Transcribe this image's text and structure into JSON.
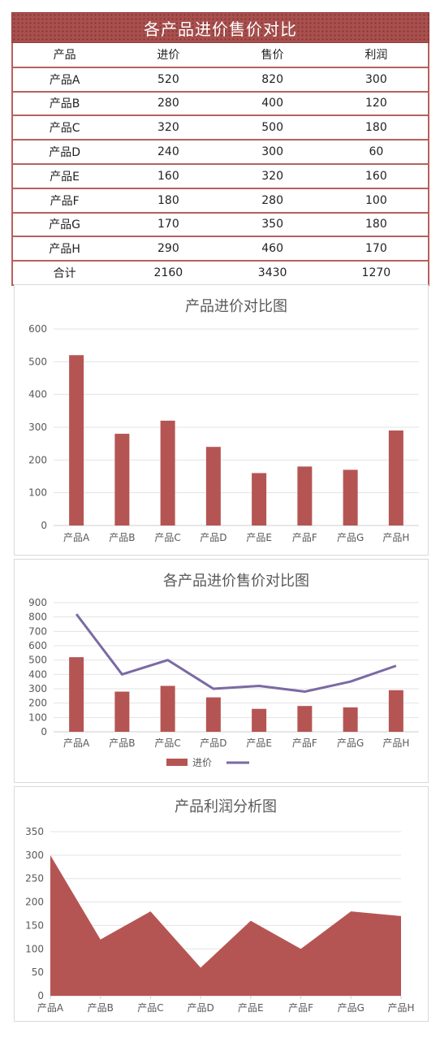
{
  "table": {
    "title": "各产品进价售价对比",
    "headers": [
      "产品",
      "进价",
      "售价",
      "利润"
    ],
    "rows": [
      [
        "产品A",
        "520",
        "820",
        "300"
      ],
      [
        "产品B",
        "280",
        "400",
        "120"
      ],
      [
        "产品C",
        "320",
        "500",
        "180"
      ],
      [
        "产品D",
        "240",
        "300",
        "60"
      ],
      [
        "产品E",
        "160",
        "320",
        "160"
      ],
      [
        "产品F",
        "180",
        "280",
        "100"
      ],
      [
        "产品G",
        "170",
        "350",
        "180"
      ],
      [
        "产品H",
        "290",
        "460",
        "170"
      ],
      [
        "合计",
        "2160",
        "3430",
        "1270"
      ]
    ]
  },
  "chart_data": [
    {
      "type": "bar",
      "title": "产品进价对比图",
      "categories": [
        "产品A",
        "产品B",
        "产品C",
        "产品D",
        "产品E",
        "产品F",
        "产品G",
        "产品H"
      ],
      "series": [
        {
          "values": [
            520,
            280,
            320,
            240,
            160,
            180,
            170,
            290
          ],
          "color": "#b55553"
        }
      ],
      "ylim": [
        0,
        600
      ],
      "yticks": [
        0,
        100,
        200,
        300,
        400,
        500,
        600
      ],
      "grid": true,
      "legend": "none"
    },
    {
      "type": "bar",
      "title": "各产品进价售价对比图",
      "categories": [
        "产品A",
        "产品B",
        "产品C",
        "产品D",
        "产品E",
        "产品F",
        "产品G",
        "产品H"
      ],
      "series": [
        {
          "name": "进价",
          "type": "bar",
          "values": [
            520,
            280,
            320,
            240,
            160,
            180,
            170,
            290
          ],
          "color": "#b55553"
        },
        {
          "type": "line",
          "values": [
            820,
            400,
            500,
            300,
            320,
            280,
            350,
            460
          ],
          "color": "#7b6aa3"
        }
      ],
      "ylim": [
        0,
        900
      ],
      "yticks": [
        0,
        100,
        200,
        300,
        400,
        500,
        600,
        700,
        800,
        900
      ],
      "grid": true,
      "legend": "bottom"
    },
    {
      "type": "area",
      "title": "产品利润分析图",
      "categories": [
        "产品A",
        "产品B",
        "产品C",
        "产品D",
        "产品E",
        "产品F",
        "产品G",
        "产品H"
      ],
      "series": [
        {
          "values": [
            300,
            120,
            180,
            60,
            160,
            100,
            180,
            170
          ],
          "color": "#b55553"
        }
      ],
      "ylim": [
        0,
        350
      ],
      "yticks": [
        0,
        50,
        100,
        150,
        200,
        250,
        300,
        350
      ],
      "grid": true,
      "legend": "none"
    }
  ]
}
